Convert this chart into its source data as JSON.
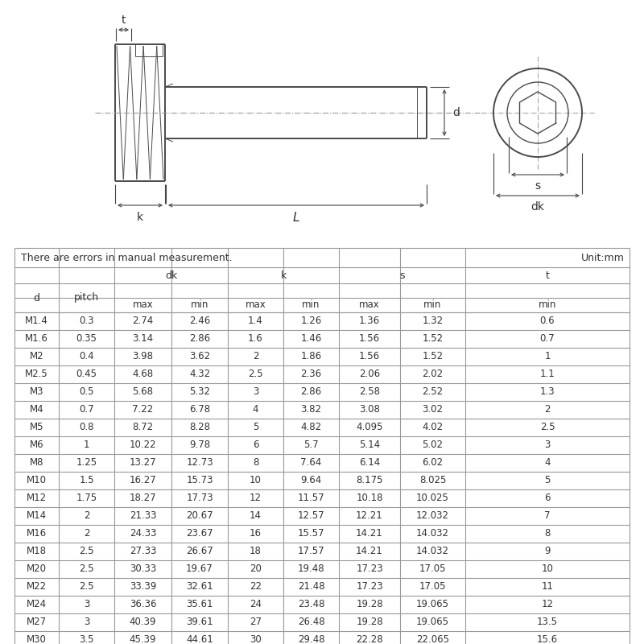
{
  "note": "There are errors in manual measurement.",
  "unit": "Unit:mm",
  "rows": [
    [
      "M1.4",
      "0.3",
      "2.74",
      "2.46",
      "1.4",
      "1.26",
      "1.36",
      "1.32",
      "0.6"
    ],
    [
      "M1.6",
      "0.35",
      "3.14",
      "2.86",
      "1.6",
      "1.46",
      "1.56",
      "1.52",
      "0.7"
    ],
    [
      "M2",
      "0.4",
      "3.98",
      "3.62",
      "2",
      "1.86",
      "1.56",
      "1.52",
      "1"
    ],
    [
      "M2.5",
      "0.45",
      "4.68",
      "4.32",
      "2.5",
      "2.36",
      "2.06",
      "2.02",
      "1.1"
    ],
    [
      "M3",
      "0.5",
      "5.68",
      "5.32",
      "3",
      "2.86",
      "2.58",
      "2.52",
      "1.3"
    ],
    [
      "M4",
      "0.7",
      "7.22",
      "6.78",
      "4",
      "3.82",
      "3.08",
      "3.02",
      "2"
    ],
    [
      "M5",
      "0.8",
      "8.72",
      "8.28",
      "5",
      "4.82",
      "4.095",
      "4.02",
      "2.5"
    ],
    [
      "M6",
      "1",
      "10.22",
      "9.78",
      "6",
      "5.7",
      "5.14",
      "5.02",
      "3"
    ],
    [
      "M8",
      "1.25",
      "13.27",
      "12.73",
      "8",
      "7.64",
      "6.14",
      "6.02",
      "4"
    ],
    [
      "M10",
      "1.5",
      "16.27",
      "15.73",
      "10",
      "9.64",
      "8.175",
      "8.025",
      "5"
    ],
    [
      "M12",
      "1.75",
      "18.27",
      "17.73",
      "12",
      "11.57",
      "10.18",
      "10.025",
      "6"
    ],
    [
      "M14",
      "2",
      "21.33",
      "20.67",
      "14",
      "12.57",
      "12.21",
      "12.032",
      "7"
    ],
    [
      "M16",
      "2",
      "24.33",
      "23.67",
      "16",
      "15.57",
      "14.21",
      "14.032",
      "8"
    ],
    [
      "M18",
      "2.5",
      "27.33",
      "26.67",
      "18",
      "17.57",
      "14.21",
      "14.032",
      "9"
    ],
    [
      "M20",
      "2.5",
      "30.33",
      "19.67",
      "20",
      "19.48",
      "17.23",
      "17.05",
      "10"
    ],
    [
      "M22",
      "2.5",
      "33.39",
      "32.61",
      "22",
      "21.48",
      "17.23",
      "17.05",
      "11"
    ],
    [
      "M24",
      "3",
      "36.36",
      "35.61",
      "24",
      "23.48",
      "19.28",
      "19.065",
      "12"
    ],
    [
      "M27",
      "3",
      "40.39",
      "39.61",
      "27",
      "26.48",
      "19.28",
      "19.065",
      "13.5"
    ],
    [
      "M30",
      "3.5",
      "45.39",
      "44.61",
      "30",
      "29.48",
      "22.28",
      "22.065",
      "15.6"
    ]
  ],
  "bg": "#ffffff",
  "lc": "#4a4a4a",
  "tc": "#333333",
  "tlc": "#999999",
  "dim_c": "#444444"
}
